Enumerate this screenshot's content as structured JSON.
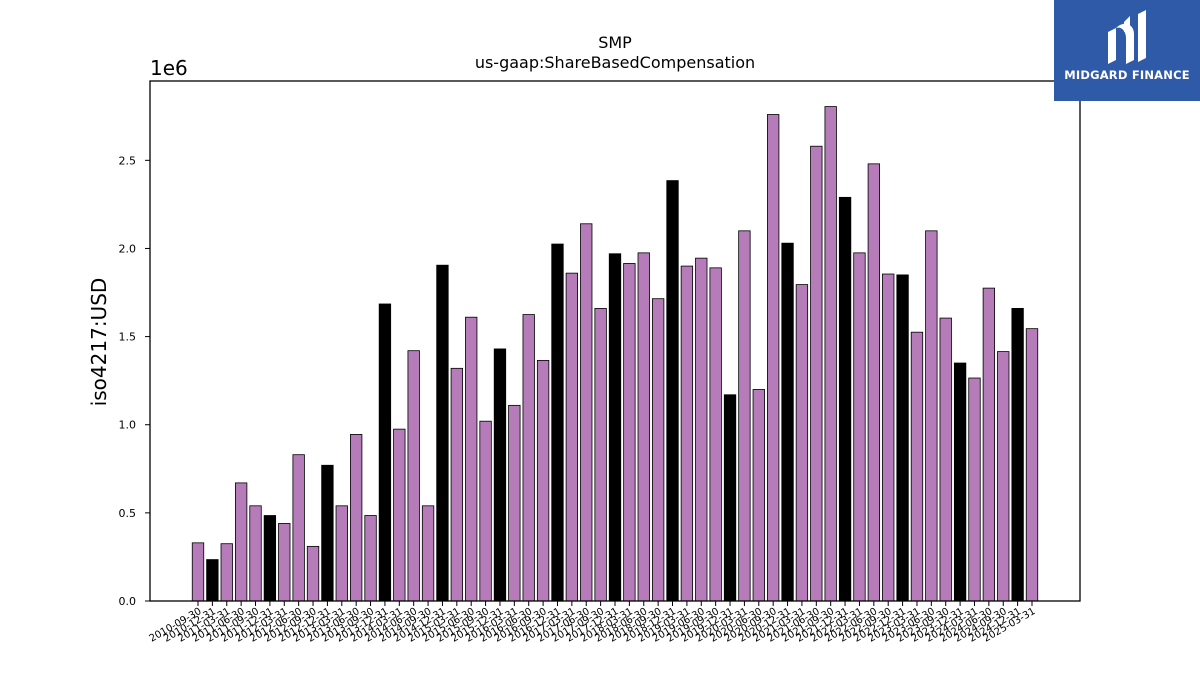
{
  "chart_data": {
    "type": "bar",
    "title": "SMP",
    "subtitle": "us-gaap:ShareBasedCompensation",
    "ylabel": "iso4217:USD",
    "xlabel": "",
    "y_multiplier_label": "1e6",
    "ylim": [
      0,
      2950000
    ],
    "yticks": [
      0,
      500000,
      1000000,
      1500000,
      2000000,
      2500000
    ],
    "ytick_labels": [
      "0.0",
      "0.5",
      "1.0",
      "1.5",
      "2.0",
      "2.5"
    ],
    "grid": false,
    "colors": {
      "quarter": "#b57cb9",
      "annual": "#000000",
      "edge": "#000000"
    },
    "categories": [
      "2010-09-30",
      "2010-12-31",
      "2011-03-31",
      "2011-06-30",
      "2011-09-30",
      "2011-12-31",
      "2012-03-31",
      "2012-06-30",
      "2012-09-30",
      "2012-12-31",
      "2013-03-31",
      "2013-06-30",
      "2013-09-30",
      "2013-12-31",
      "2014-03-31",
      "2014-06-30",
      "2014-09-30",
      "2014-12-31",
      "2015-03-31",
      "2015-06-30",
      "2015-09-30",
      "2015-12-31",
      "2016-03-31",
      "2016-06-30",
      "2016-09-30",
      "2016-12-31",
      "2017-03-31",
      "2017-06-30",
      "2017-09-30",
      "2017-12-31",
      "2018-03-31",
      "2018-06-30",
      "2018-09-30",
      "2018-12-31",
      "2019-03-31",
      "2019-06-30",
      "2019-09-30",
      "2019-12-31",
      "2020-03-31",
      "2020-06-30",
      "2020-09-30",
      "2020-12-31",
      "2021-03-31",
      "2021-06-30",
      "2021-09-30",
      "2021-12-31",
      "2022-03-31",
      "2022-06-30",
      "2022-09-30",
      "2022-12-31",
      "2023-03-31",
      "2023-06-30",
      "2023-09-30",
      "2023-12-31",
      "2024-03-31",
      "2024-06-30",
      "2024-09-30",
      "2024-12-31",
      "2025-03-31"
    ],
    "values": [
      330000,
      235000,
      325000,
      670000,
      540000,
      485000,
      440000,
      830000,
      310000,
      770000,
      540000,
      945000,
      485000,
      1685000,
      975000,
      1420000,
      540000,
      1905000,
      1320000,
      1610000,
      1020000,
      1430000,
      1110000,
      1625000,
      1365000,
      2025000,
      1860000,
      2140000,
      1660000,
      1970000,
      1915000,
      1975000,
      1715000,
      2385000,
      1900000,
      1945000,
      1890000,
      1170000,
      2100000,
      1200000,
      2760000,
      2030000,
      1795000,
      2580000,
      2805000,
      2290000,
      1975000,
      2480000,
      1855000,
      1850000,
      1525000,
      2100000,
      1605000,
      1350000,
      1265000,
      1775000,
      1415000,
      1660000,
      1545000
    ],
    "annual_flags": [
      false,
      true,
      false,
      false,
      false,
      true,
      false,
      false,
      false,
      true,
      false,
      false,
      false,
      true,
      false,
      false,
      false,
      true,
      false,
      false,
      false,
      true,
      false,
      false,
      false,
      true,
      false,
      false,
      false,
      true,
      false,
      false,
      false,
      true,
      false,
      false,
      false,
      true,
      false,
      false,
      false,
      true,
      false,
      false,
      false,
      true,
      false,
      false,
      false,
      true,
      false,
      false,
      false,
      true,
      false,
      false,
      false,
      true,
      false
    ]
  },
  "logo": {
    "text": "MIDGARD FINANCE",
    "color": "#2f5aa8"
  }
}
